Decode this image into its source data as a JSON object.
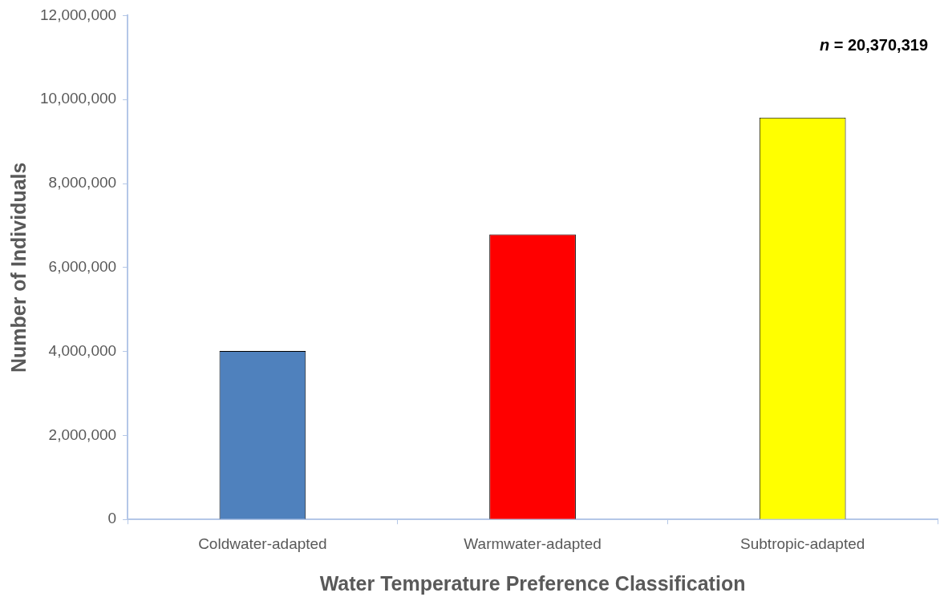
{
  "chart_data": {
    "type": "bar",
    "xlabel": "Water Temperature Preference Classification",
    "ylabel": "Number of Individuals",
    "categories": [
      "Coldwater-adapted",
      "Warmwater-adapted",
      "Subtropic-adapted"
    ],
    "values": [
      4010000,
      6790000,
      9570000
    ],
    "colors": [
      "#4f81bd",
      "#ff0000",
      "#ffff00"
    ],
    "ylim": [
      0,
      12000000
    ],
    "yticks": [
      {
        "value": 0,
        "label": "0"
      },
      {
        "value": 2000000,
        "label": "2,000,000"
      },
      {
        "value": 4000000,
        "label": "4,000,000"
      },
      {
        "value": 6000000,
        "label": "6,000,000"
      },
      {
        "value": 8000000,
        "label": "8,000,000"
      },
      {
        "value": 10000000,
        "label": "10,000,000"
      },
      {
        "value": 12000000,
        "label": "12,000,000"
      }
    ],
    "annotations": [
      "n = 20,370,319"
    ],
    "grid": false,
    "legend": false
  }
}
